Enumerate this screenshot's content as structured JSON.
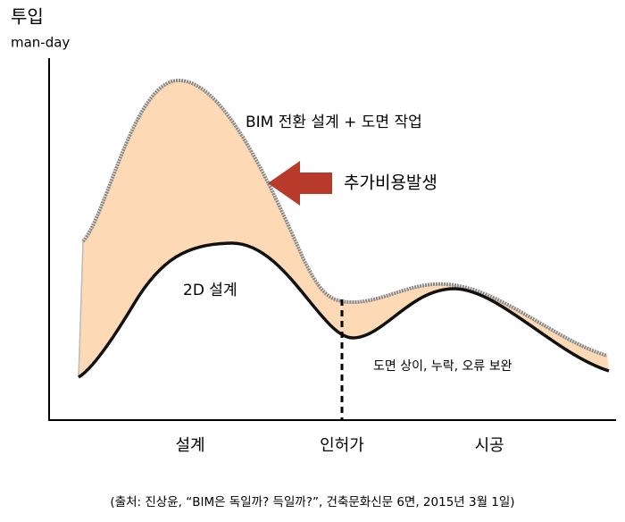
{
  "y_axis": {
    "title": "투입",
    "unit": "man-day"
  },
  "labels": {
    "bim": "BIM 전환 설계 + 도면 작업",
    "extra_cost": "추가비용발생",
    "two_d": "2D 설계",
    "fix": "도면 상이, 누락, 오류 보완"
  },
  "x_axis": {
    "phases": [
      "설계",
      "인허가",
      "시공"
    ]
  },
  "source": "(출처: 진상윤, “BIM은 독일까? 득일까?”, 건축문화신문 6면, 2015년 3월 1일)"
}
